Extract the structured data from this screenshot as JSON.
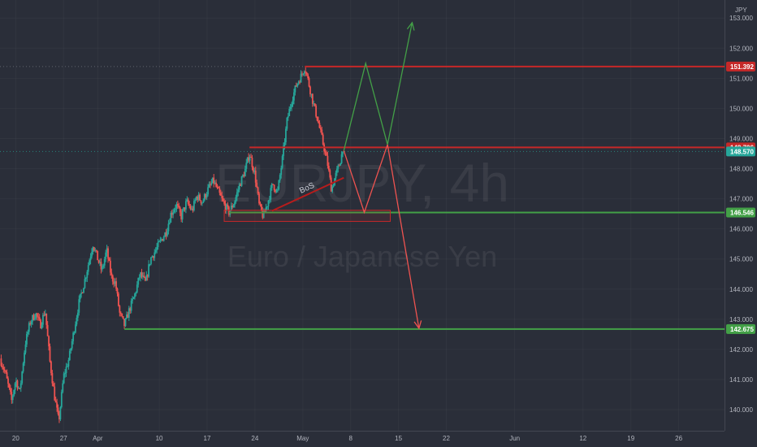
{
  "colors": {
    "background": "#2a2e39",
    "up": "#26a69a",
    "down": "#ef5350",
    "resistance": "#c62828",
    "support": "#43a047",
    "last_price": "#26a69a",
    "axis_text": "#b2b5be",
    "bos": "#b71c1c"
  },
  "watermark": {
    "symbol": "EURJPY, 4h",
    "description": "Euro / Japanese Yen"
  },
  "chart_data": {
    "type": "candlestick",
    "currency_label": "JPY",
    "ylim": [
      139.3,
      153.6
    ],
    "y_ticks": [
      "153.000",
      "152.000",
      "151.000",
      "150.000",
      "149.000",
      "148.000",
      "147.000",
      "146.000",
      "145.000",
      "144.000",
      "143.000",
      "142.000",
      "141.000",
      "140.000"
    ],
    "x_ticks": [
      {
        "label": "20",
        "day": 0
      },
      {
        "label": "27",
        "day": 7
      },
      {
        "label": "Apr",
        "day": 12
      },
      {
        "label": "10",
        "day": 21
      },
      {
        "label": "17",
        "day": 28
      },
      {
        "label": "24",
        "day": 35
      },
      {
        "label": "May",
        "day": 42
      },
      {
        "label": "8",
        "day": 49
      },
      {
        "label": "15",
        "day": 56
      },
      {
        "label": "22",
        "day": 63
      },
      {
        "label": "Jun",
        "day": 73
      },
      {
        "label": "12",
        "day": 83
      },
      {
        "label": "19",
        "day": 90
      },
      {
        "label": "26",
        "day": 97
      }
    ],
    "day_range": [
      -2.3,
      103.7
    ],
    "price_path": [
      [
        -2.3,
        141.7
      ],
      [
        -1.5,
        141.2
      ],
      [
        -0.6,
        140.3
      ],
      [
        0.0,
        141.0
      ],
      [
        0.6,
        140.6
      ],
      [
        1.4,
        142.2
      ],
      [
        2.1,
        142.9
      ],
      [
        2.9,
        143.2
      ],
      [
        3.6,
        142.8
      ],
      [
        4.3,
        143.3
      ],
      [
        5.0,
        141.6
      ],
      [
        5.7,
        140.4
      ],
      [
        6.3,
        139.6
      ],
      [
        7.0,
        141.1
      ],
      [
        7.8,
        141.7
      ],
      [
        8.5,
        142.6
      ],
      [
        9.3,
        143.6
      ],
      [
        10.0,
        144.2
      ],
      [
        10.7,
        144.9
      ],
      [
        11.3,
        145.5
      ],
      [
        12.0,
        145.0
      ],
      [
        12.6,
        144.6
      ],
      [
        13.3,
        145.3
      ],
      [
        14.0,
        144.4
      ],
      [
        14.6,
        144.2
      ],
      [
        15.2,
        143.2
      ],
      [
        15.9,
        142.8
      ],
      [
        16.6,
        143.3
      ],
      [
        17.4,
        143.8
      ],
      [
        18.2,
        144.5
      ],
      [
        19.0,
        144.2
      ],
      [
        19.7,
        145.0
      ],
      [
        20.5,
        145.3
      ],
      [
        21.2,
        145.6
      ],
      [
        22.0,
        145.9
      ],
      [
        22.7,
        146.5
      ],
      [
        23.5,
        146.8
      ],
      [
        24.2,
        146.4
      ],
      [
        25.0,
        146.9
      ],
      [
        25.8,
        146.6
      ],
      [
        26.5,
        147.1
      ],
      [
        27.3,
        146.9
      ],
      [
        28.1,
        147.3
      ],
      [
        28.9,
        147.6
      ],
      [
        29.7,
        147.2
      ],
      [
        30.5,
        146.8
      ],
      [
        31.2,
        146.55
      ],
      [
        32.0,
        146.9
      ],
      [
        32.8,
        147.5
      ],
      [
        33.5,
        147.9
      ],
      [
        34.2,
        148.5
      ],
      [
        35.0,
        147.8
      ],
      [
        35.6,
        146.8
      ],
      [
        36.2,
        146.4
      ],
      [
        36.9,
        146.9
      ],
      [
        37.6,
        147.5
      ],
      [
        38.3,
        147.2
      ],
      [
        39.0,
        148.3
      ],
      [
        39.7,
        149.6
      ],
      [
        40.4,
        150.3
      ],
      [
        41.1,
        150.8
      ],
      [
        41.8,
        151.1
      ],
      [
        42.3,
        151.39
      ],
      [
        42.8,
        150.9
      ],
      [
        43.5,
        150.2
      ],
      [
        44.2,
        149.6
      ],
      [
        44.9,
        148.9
      ],
      [
        45.6,
        148.2
      ],
      [
        46.2,
        147.3
      ],
      [
        46.7,
        147.7
      ],
      [
        47.3,
        148.1
      ],
      [
        47.8,
        148.57
      ]
    ],
    "levels": [
      {
        "name": "resistance_high",
        "value": 151.392,
        "label": "151.392",
        "kind": "resistance"
      },
      {
        "name": "resistance_mid",
        "value": 148.706,
        "label": "148.706",
        "kind": "resistance"
      },
      {
        "name": "support_mid",
        "value": 146.546,
        "label": "146.546",
        "kind": "support"
      },
      {
        "name": "support_low",
        "value": 142.675,
        "label": "142.675",
        "kind": "support"
      }
    ],
    "last_price": {
      "value": 148.57,
      "label": "148.570"
    },
    "annotations": {
      "bos": {
        "label": "BoS",
        "from": [
          37.5,
          146.6
        ],
        "to": [
          48.0,
          147.7
        ]
      },
      "demand_zone": {
        "day_start": 30.5,
        "day_end": 54.8,
        "price_top": 146.62,
        "price_bottom": 146.25
      },
      "bullish_path": [
        [
          48.0,
          148.6
        ],
        [
          51.2,
          151.5
        ],
        [
          54.4,
          148.8
        ],
        [
          58.0,
          152.85
        ]
      ],
      "bearish_path": [
        [
          48.0,
          148.6
        ],
        [
          51.0,
          146.55
        ],
        [
          54.4,
          148.8
        ],
        [
          59.0,
          142.7
        ]
      ]
    }
  }
}
